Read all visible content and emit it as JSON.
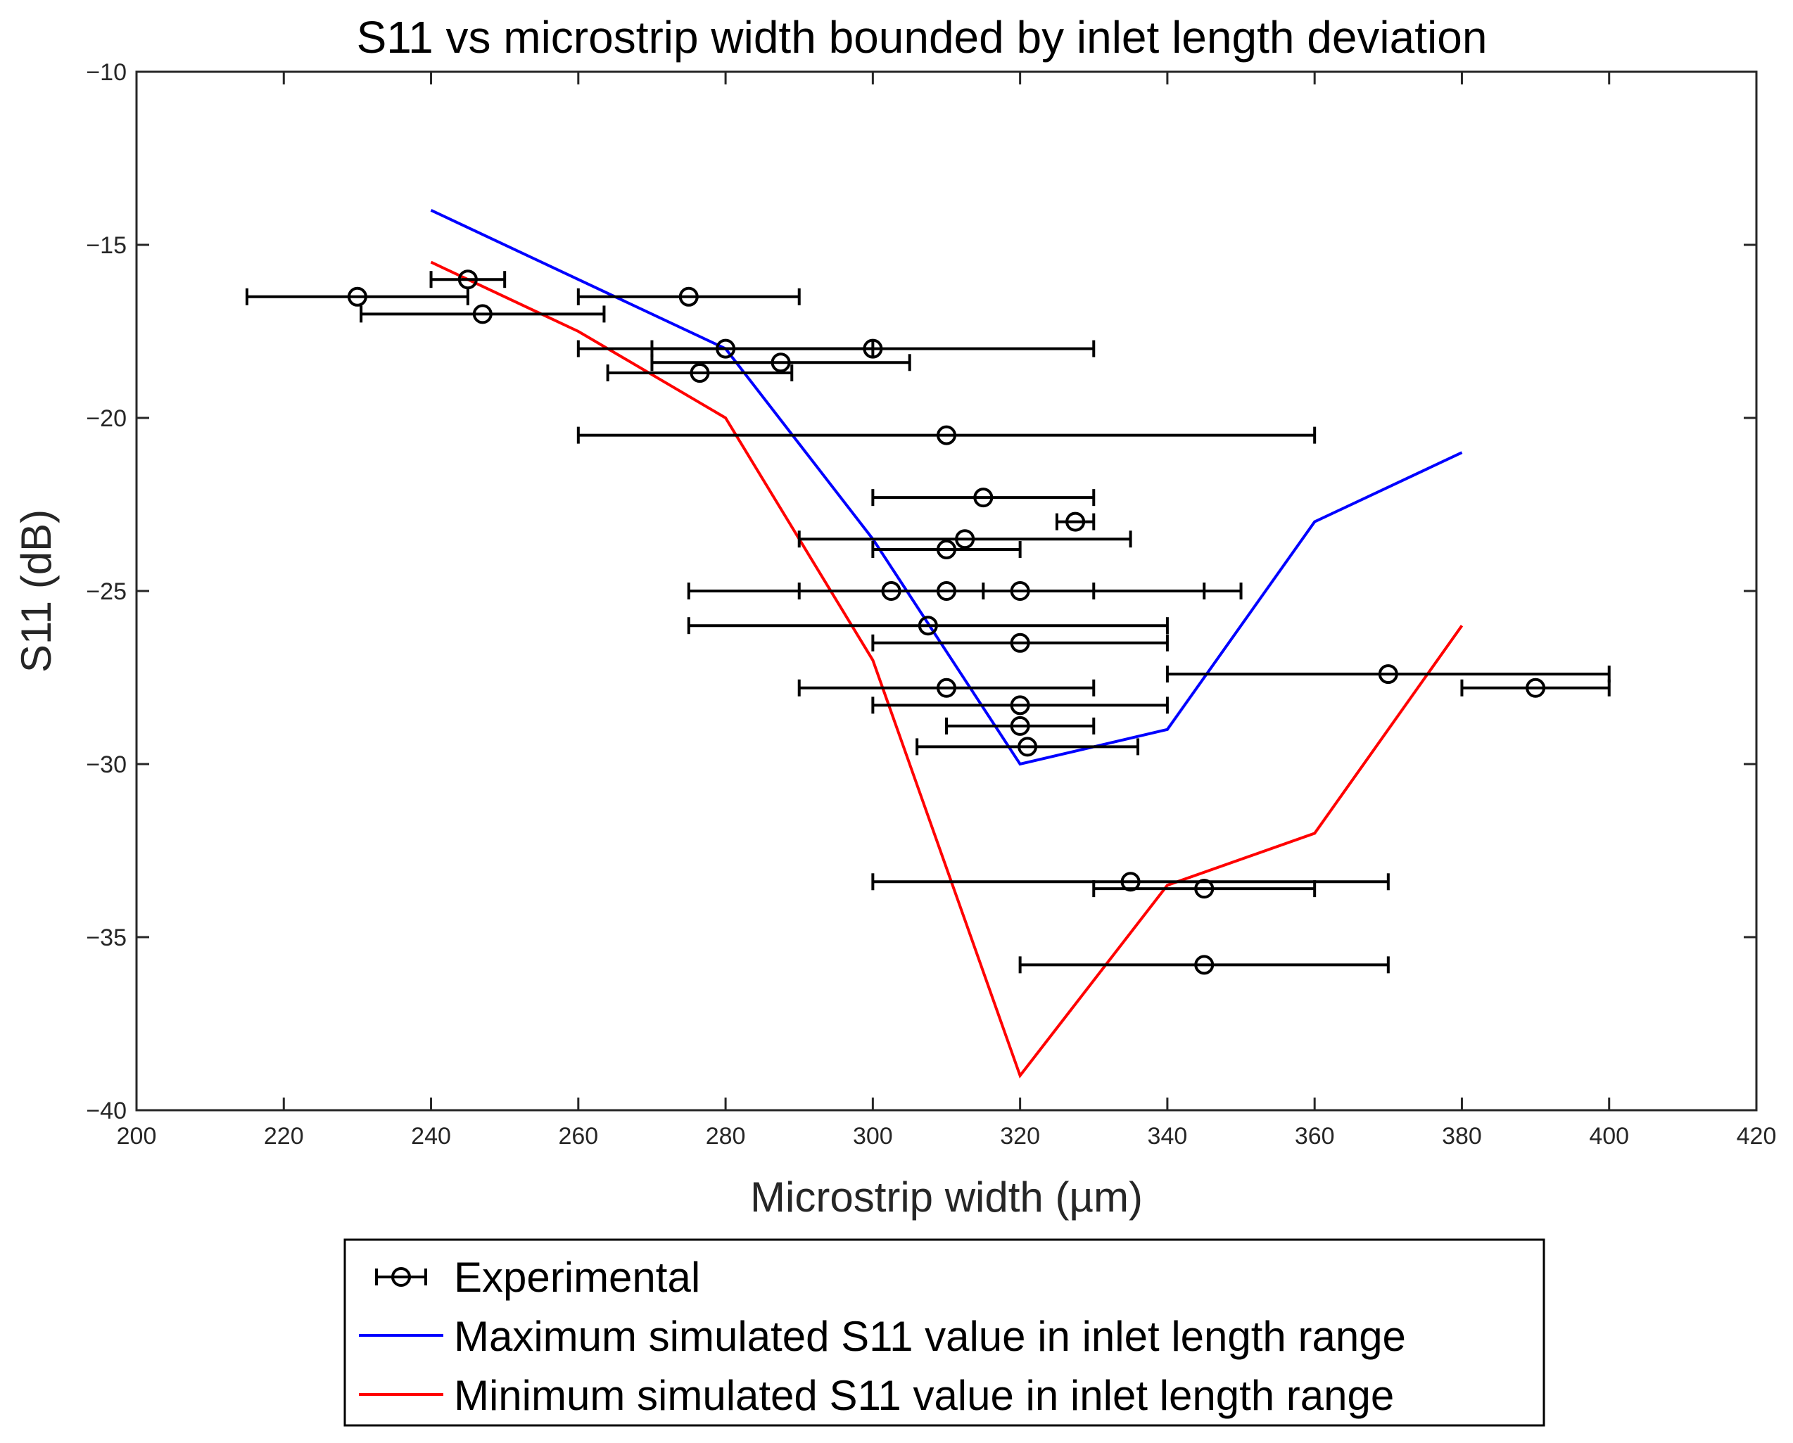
{
  "chart_data": {
    "type": "scatter",
    "title": "S11 vs microstrip width bounded by inlet length deviation",
    "xlabel": "Microstrip width (µm)",
    "ylabel": "S11 (dB)",
    "xlim": [
      200,
      420
    ],
    "ylim": [
      -40,
      -10
    ],
    "xticks": [
      200,
      220,
      240,
      260,
      280,
      300,
      320,
      340,
      360,
      380,
      400,
      420
    ],
    "yticks": [
      -40,
      -35,
      -30,
      -25,
      -20,
      -15,
      -10
    ],
    "xtick_labels": [
      "200",
      "220",
      "240",
      "260",
      "280",
      "300",
      "320",
      "340",
      "360",
      "380",
      "400",
      "420"
    ],
    "ytick_labels": [
      "−40",
      "−35",
      "−30",
      "−25",
      "−20",
      "−15",
      "−10"
    ],
    "grid": false,
    "legend_position": "bottom-outside",
    "series": [
      {
        "name": "Experimental",
        "kind": "errorbar",
        "color": "#000000",
        "points": [
          {
            "x": 230,
            "y": -16.5,
            "xmin": 215,
            "xmax": 245
          },
          {
            "x": 245,
            "y": -16.0,
            "xmin": 240,
            "xmax": 250
          },
          {
            "x": 247,
            "y": -17.0,
            "xmin": 230.5,
            "xmax": 263.5
          },
          {
            "x": 275,
            "y": -16.5,
            "xmin": 260,
            "xmax": 290
          },
          {
            "x": 280,
            "y": -18.0,
            "xmin": 260,
            "xmax": 300
          },
          {
            "x": 300,
            "y": -18.0,
            "xmin": 270,
            "xmax": 330
          },
          {
            "x": 287.5,
            "y": -18.4,
            "xmin": 270,
            "xmax": 305
          },
          {
            "x": 276.5,
            "y": -18.7,
            "xmin": 264,
            "xmax": 289
          },
          {
            "x": 310,
            "y": -20.5,
            "xmin": 260,
            "xmax": 360
          },
          {
            "x": 315,
            "y": -22.3,
            "xmin": 300,
            "xmax": 330
          },
          {
            "x": 327.5,
            "y": -23.0,
            "xmin": 325,
            "xmax": 330
          },
          {
            "x": 312.5,
            "y": -23.5,
            "xmin": 290,
            "xmax": 335
          },
          {
            "x": 310,
            "y": -23.8,
            "xmin": 300,
            "xmax": 320
          },
          {
            "x": 302.5,
            "y": -25.0,
            "xmin": 275,
            "xmax": 330
          },
          {
            "x": 310,
            "y": -25.0,
            "xmin": 290,
            "xmax": 345
          },
          {
            "x": 320,
            "y": -25.0,
            "xmin": 315,
            "xmax": 350
          },
          {
            "x": 307.5,
            "y": -26.0,
            "xmin": 275,
            "xmax": 340
          },
          {
            "x": 320,
            "y": -26.5,
            "xmin": 300,
            "xmax": 340
          },
          {
            "x": 370,
            "y": -27.4,
            "xmin": 340,
            "xmax": 400
          },
          {
            "x": 390,
            "y": -27.8,
            "xmin": 380,
            "xmax": 400
          },
          {
            "x": 310,
            "y": -27.8,
            "xmin": 290,
            "xmax": 330
          },
          {
            "x": 320,
            "y": -28.3,
            "xmin": 300,
            "xmax": 340
          },
          {
            "x": 320,
            "y": -28.9,
            "xmin": 310,
            "xmax": 330
          },
          {
            "x": 321,
            "y": -29.5,
            "xmin": 306,
            "xmax": 336
          },
          {
            "x": 335,
            "y": -33.4,
            "xmin": 300,
            "xmax": 370
          },
          {
            "x": 345,
            "y": -33.6,
            "xmin": 330,
            "xmax": 360
          },
          {
            "x": 345,
            "y": -35.8,
            "xmin": 320,
            "xmax": 370
          }
        ]
      },
      {
        "name": "Maximum simulated S11 value in inlet length range",
        "kind": "line",
        "color": "#0000ff",
        "x": [
          240,
          280,
          300,
          320,
          340,
          360,
          380
        ],
        "values": [
          -14,
          -18,
          -23.5,
          -30,
          -29,
          -23,
          -21
        ]
      },
      {
        "name": "Minimum simulated S11 value in inlet length range",
        "kind": "line",
        "color": "#ff0000",
        "x": [
          240,
          260,
          280,
          300,
          320,
          340,
          360,
          380
        ],
        "values": [
          -15.5,
          -17.5,
          -20,
          -27,
          -39,
          -33.5,
          -32,
          -26
        ]
      }
    ]
  }
}
